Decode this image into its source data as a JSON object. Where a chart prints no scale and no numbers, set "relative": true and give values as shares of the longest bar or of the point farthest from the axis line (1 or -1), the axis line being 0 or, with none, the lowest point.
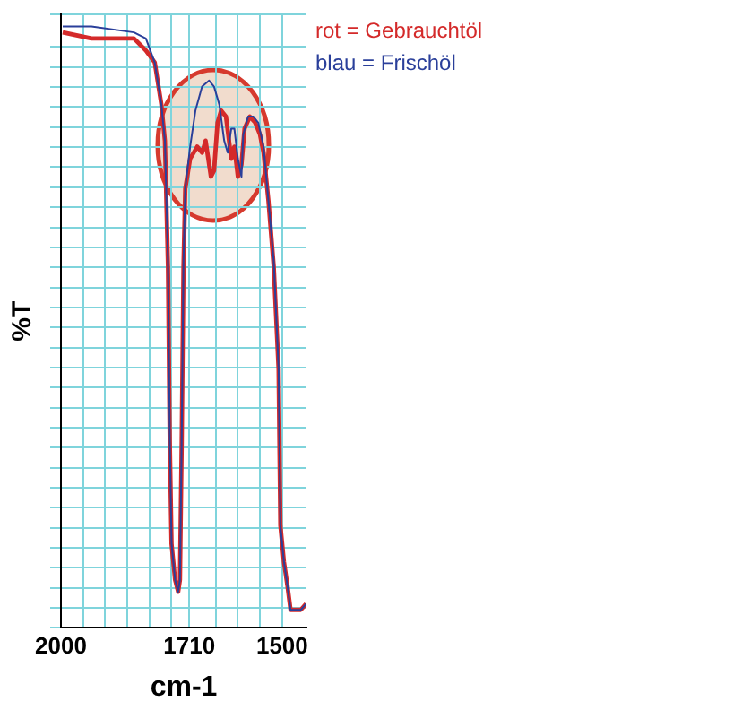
{
  "chart_data": {
    "type": "line",
    "xlabel": "cm-1",
    "ylabel": "%T",
    "relative": true,
    "grid": true,
    "legend": "top right",
    "marker": "none",
    "line_style": "solid",
    "xlim": [
      2000,
      1445
    ],
    "xticks": [
      2000,
      {
        "value": 1950,
        "label": null
      },
      {
        "value": 1900,
        "label": null
      },
      {
        "value": 1850,
        "label": null
      },
      {
        "value": 1800,
        "label": null
      },
      {
        "value": 1750,
        "label": null
      },
      1710,
      {
        "value": 1650,
        "label": null
      },
      {
        "value": 1600,
        "label": null
      },
      {
        "value": 1550,
        "label": null
      },
      1500
    ],
    "series": [
      {
        "name": "rot = Gebrauchtöl",
        "color": "#d42a2a",
        "x": [
          1996,
          1931,
          1835,
          1808,
          1788,
          1773,
          1765,
          1758,
          1754,
          1750,
          1742,
          1735,
          1731,
          1727,
          1723,
          1719,
          1708,
          1692,
          1681,
          1673,
          1661,
          1654,
          1646,
          1638,
          1627,
          1615,
          1608,
          1600,
          1592,
          1585,
          1573,
          1561,
          1550,
          1542,
          1531,
          1519,
          1508,
          1504,
          1496,
          1488,
          1481,
          1458,
          1446
        ],
        "values": [
          0.99,
          0.98,
          0.98,
          0.96,
          0.94,
          0.87,
          0.81,
          0.6,
          0.31,
          0.14,
          0.08,
          0.06,
          0.08,
          0.31,
          0.6,
          0.73,
          0.78,
          0.8,
          0.79,
          0.81,
          0.75,
          0.76,
          0.84,
          0.86,
          0.85,
          0.78,
          0.8,
          0.75,
          0.77,
          0.83,
          0.85,
          0.84,
          0.82,
          0.79,
          0.71,
          0.6,
          0.43,
          0.17,
          0.11,
          0.07,
          0.03,
          0.03,
          0.04
        ]
      },
      {
        "name": "blau = Frischöl",
        "color": "#2a3f9a",
        "x": [
          1996,
          1931,
          1835,
          1808,
          1788,
          1773,
          1765,
          1758,
          1754,
          1750,
          1742,
          1735,
          1731,
          1727,
          1723,
          1719,
          1708,
          1696,
          1681,
          1665,
          1654,
          1642,
          1631,
          1623,
          1615,
          1608,
          1600,
          1592,
          1588,
          1577,
          1565,
          1554,
          1542,
          1531,
          1519,
          1508,
          1504,
          1496,
          1488,
          1481,
          1458,
          1446
        ],
        "values": [
          1.0,
          1.0,
          0.99,
          0.98,
          0.94,
          0.87,
          0.81,
          0.61,
          0.32,
          0.14,
          0.08,
          0.06,
          0.08,
          0.32,
          0.61,
          0.73,
          0.8,
          0.86,
          0.9,
          0.91,
          0.9,
          0.87,
          0.81,
          0.79,
          0.83,
          0.83,
          0.78,
          0.75,
          0.82,
          0.85,
          0.85,
          0.84,
          0.8,
          0.71,
          0.61,
          0.43,
          0.17,
          0.11,
          0.07,
          0.03,
          0.03,
          0.04
        ]
      }
    ]
  }
}
